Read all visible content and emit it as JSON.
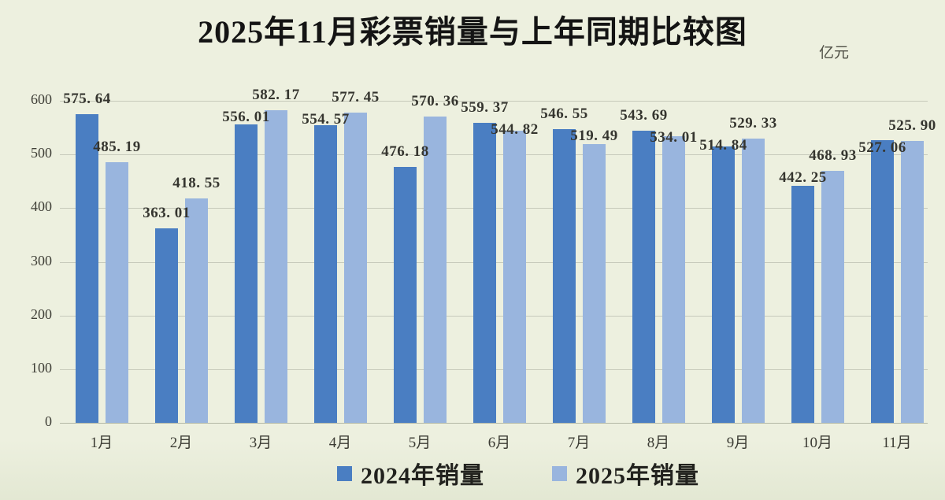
{
  "title": "2025年11月彩票销量与上年同期比较图",
  "unit_label": "亿元",
  "colors": {
    "series2024": "#4a7ec2",
    "series2025": "#99b5de",
    "background": "#edf0df",
    "grid": "#c7cabb",
    "label_text": "#35352f"
  },
  "legend": [
    {
      "label": "2024年销量",
      "color_key": "series2024"
    },
    {
      "label": "2025年销量",
      "color_key": "series2025"
    }
  ],
  "chart_data": {
    "type": "bar",
    "title": "2025年11月彩票销量与上年同期比较图",
    "unit": "亿元",
    "categories": [
      "1月",
      "2月",
      "3月",
      "4月",
      "5月",
      "6月",
      "7月",
      "8月",
      "9月",
      "10月",
      "11月"
    ],
    "series": [
      {
        "name": "2024年销量",
        "values": [
          575.64,
          363.01,
          556.01,
          554.57,
          476.18,
          559.37,
          546.55,
          543.69,
          514.84,
          442.25,
          527.06
        ]
      },
      {
        "name": "2025年销量",
        "values": [
          485.19,
          418.55,
          582.17,
          577.45,
          570.36,
          544.82,
          519.49,
          534.01,
          529.33,
          468.93,
          525.9
        ]
      }
    ],
    "ylim": [
      0,
      600
    ],
    "yticks": [
      0,
      100,
      200,
      300,
      400,
      500,
      600
    ],
    "grid": true,
    "value_labels": true,
    "value_label_decimals": 2,
    "legend_position": "bottom"
  }
}
